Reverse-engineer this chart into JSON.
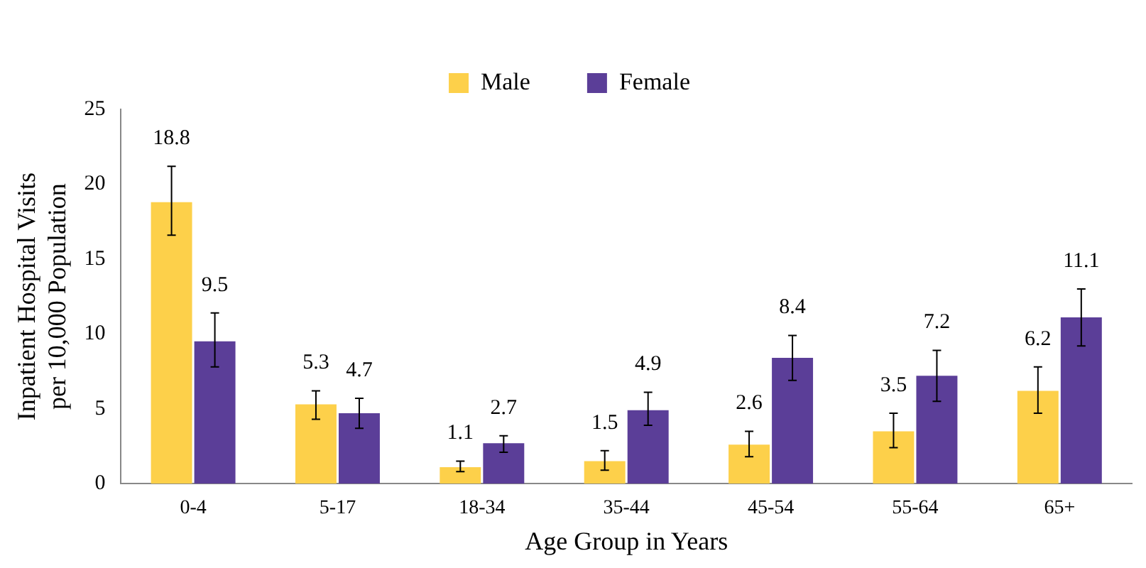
{
  "chart_data": {
    "type": "bar",
    "xlabel": "Age Group in Years",
    "ylabel": "Inpatient Hospital Visits per 10,000 Population",
    "categories": [
      "0-4",
      "5-17",
      "18-34",
      "35-44",
      "45-54",
      "55-64",
      "65+"
    ],
    "series": [
      {
        "name": "Male",
        "color": "#fdd04a",
        "values": [
          18.8,
          5.3,
          1.1,
          1.5,
          2.6,
          3.5,
          6.2
        ],
        "errors": [
          [
            16.6,
            21.2
          ],
          [
            4.3,
            6.2
          ],
          [
            0.8,
            1.5
          ],
          [
            0.9,
            2.2
          ],
          [
            1.8,
            3.5
          ],
          [
            2.4,
            4.7
          ],
          [
            4.7,
            7.8
          ]
        ]
      },
      {
        "name": "Female",
        "color": "#5b3e98",
        "values": [
          9.5,
          4.7,
          2.7,
          4.9,
          8.4,
          7.2,
          11.1
        ],
        "errors": [
          [
            7.8,
            11.4
          ],
          [
            3.7,
            5.7
          ],
          [
            2.1,
            3.2
          ],
          [
            3.9,
            6.1
          ],
          [
            6.9,
            9.9
          ],
          [
            5.5,
            8.9
          ],
          [
            9.2,
            13.0
          ]
        ]
      }
    ],
    "ylim": [
      0,
      25
    ],
    "yticks": [
      0,
      5,
      10,
      15,
      20,
      25
    ],
    "grid": false,
    "legend": "top",
    "data_labels": true
  }
}
